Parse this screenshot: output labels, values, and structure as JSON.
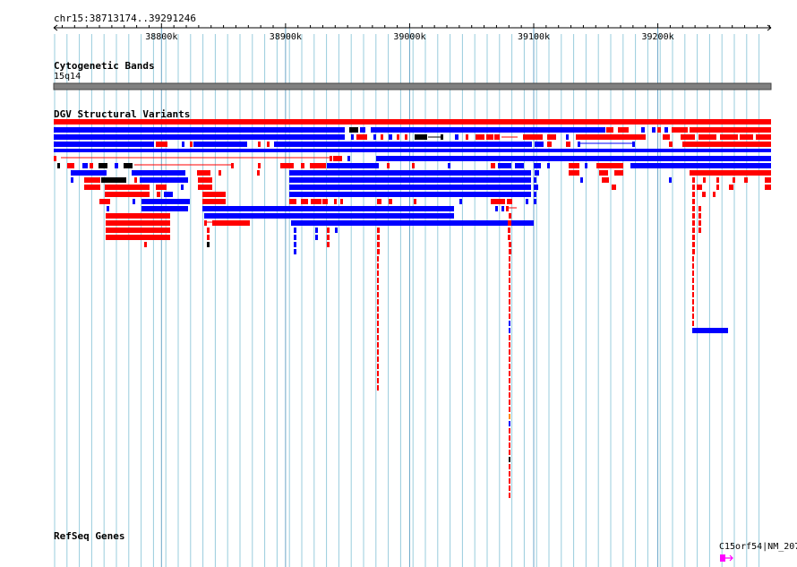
{
  "region": {
    "label": "chr15:38713174..39291246"
  },
  "ruler": {
    "ticks": [
      {
        "pos": 38800000,
        "label": "38800k"
      },
      {
        "pos": 38900000,
        "label": "38900k"
      },
      {
        "pos": 39000000,
        "label": "39000k"
      },
      {
        "pos": 39100000,
        "label": "39100k"
      },
      {
        "pos": 39200000,
        "label": "39200k"
      }
    ]
  },
  "tracks": {
    "cytoband": {
      "title": "Cytogenetic Bands",
      "band": "15q14"
    },
    "dgv": {
      "title": "DGV Structural Variants"
    },
    "refseq": {
      "title": "RefSeq Genes",
      "gene_label": "C15orf54|NM_207"
    }
  },
  "colors": {
    "gain": "#ff0000",
    "loss": "#0000ff",
    "both": "#000000",
    "band": "#808080",
    "gene": "#ff00ff",
    "grid": "#99ccdd"
  }
}
